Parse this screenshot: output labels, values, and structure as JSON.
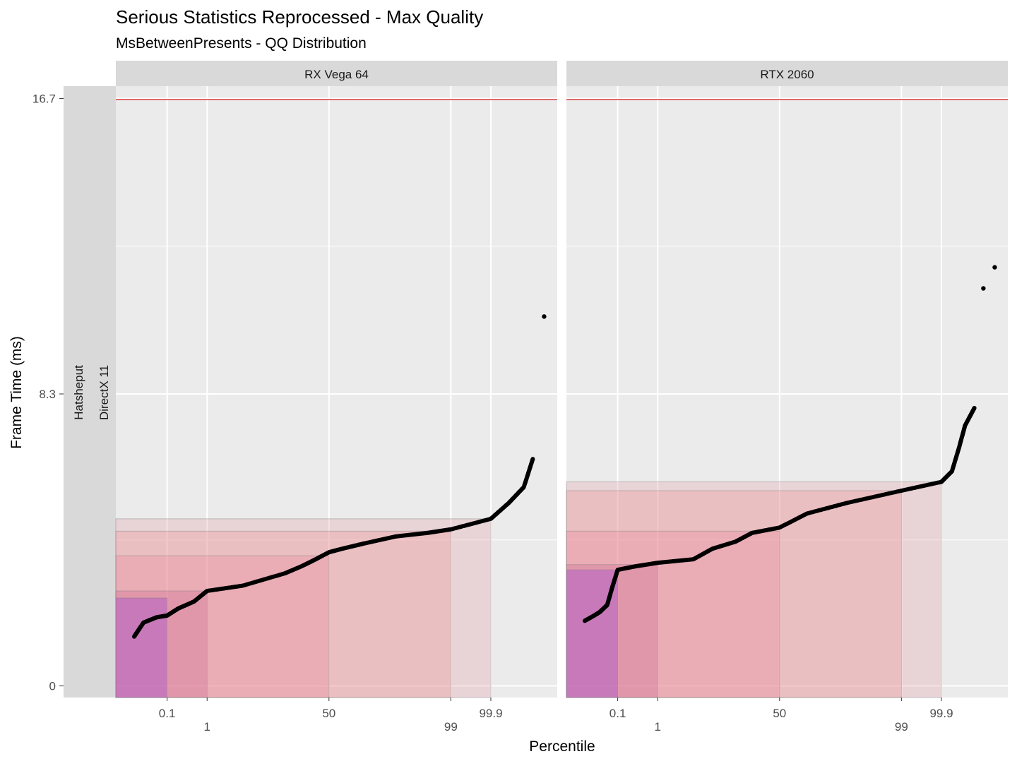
{
  "chart_data": {
    "type": "scatter",
    "title": "Serious Statistics Reprocessed - Max Quality",
    "subtitle": "MsBetweenPresents - QQ Distribution",
    "xlabel": "Percentile",
    "ylabel": "Frame Time (ms)",
    "row_strip": [
      "Hatsheput",
      "DirectX 11"
    ],
    "y_ticks": [
      {
        "value": 0,
        "label": "0"
      },
      {
        "value": 8.3,
        "label": "8.3"
      },
      {
        "value": 16.7,
        "label": "16.7"
      }
    ],
    "ylim": [
      -0.33,
      17.05
    ],
    "x_ticks": [
      {
        "percentile": 0.1,
        "label": "0.1",
        "row": 0
      },
      {
        "percentile": 1,
        "label": "1",
        "row": 1
      },
      {
        "percentile": 50,
        "label": "50",
        "row": 0
      },
      {
        "percentile": 99,
        "label": "99",
        "row": 1
      },
      {
        "percentile": 99.9,
        "label": "99.9",
        "row": 0
      }
    ],
    "reference_line": {
      "value": 16.67,
      "color": "#cc0000"
    },
    "panels": [
      {
        "name": "RX Vega 64",
        "percentile_rects": [
          {
            "percentile": 0.1,
            "value": 2.5,
            "color": "#8a2be2",
            "opacity": 0.28
          },
          {
            "percentile": 1,
            "value": 2.7,
            "color": "#c04080",
            "opacity": 0.2
          },
          {
            "percentile": 50,
            "value": 3.7,
            "color": "#f06080",
            "opacity": 0.18
          },
          {
            "percentile": 99,
            "value": 4.4,
            "color": "#f08080",
            "opacity": 0.25
          },
          {
            "percentile": 99.9,
            "value": 4.75,
            "color": "#e0a0a8",
            "opacity": 0.3
          }
        ],
        "quantile_curve": [
          [
            0.01,
            1.4
          ],
          [
            0.02,
            1.8
          ],
          [
            0.05,
            1.95
          ],
          [
            0.1,
            2.0
          ],
          [
            0.2,
            2.2
          ],
          [
            0.5,
            2.4
          ],
          [
            1,
            2.7
          ],
          [
            5,
            2.85
          ],
          [
            20,
            3.2
          ],
          [
            30,
            3.4
          ],
          [
            40,
            3.6
          ],
          [
            50,
            3.8
          ],
          [
            60,
            3.9
          ],
          [
            75,
            4.05
          ],
          [
            90,
            4.25
          ],
          [
            97,
            4.35
          ],
          [
            99,
            4.45
          ],
          [
            99.9,
            4.75
          ],
          [
            99.97,
            5.2
          ],
          [
            99.99,
            5.65
          ],
          [
            99.995,
            6.45
          ]
        ],
        "outliers": [
          [
            99.998,
            10.5
          ]
        ]
      },
      {
        "name": "RTX 2060",
        "percentile_rects": [
          {
            "percentile": 0.1,
            "value": 3.3,
            "color": "#8a2be2",
            "opacity": 0.28
          },
          {
            "percentile": 1,
            "value": 3.45,
            "color": "#c04080",
            "opacity": 0.2
          },
          {
            "percentile": 50,
            "value": 4.4,
            "color": "#f06080",
            "opacity": 0.18
          },
          {
            "percentile": 99,
            "value": 5.55,
            "color": "#f08080",
            "opacity": 0.25
          },
          {
            "percentile": 99.9,
            "value": 5.8,
            "color": "#e0a0a8",
            "opacity": 0.3
          }
        ],
        "quantile_curve": [
          [
            0.01,
            1.85
          ],
          [
            0.02,
            2.0
          ],
          [
            0.03,
            2.1
          ],
          [
            0.05,
            2.3
          ],
          [
            0.07,
            2.8
          ],
          [
            0.1,
            3.3
          ],
          [
            0.3,
            3.4
          ],
          [
            1,
            3.5
          ],
          [
            5,
            3.6
          ],
          [
            10,
            3.9
          ],
          [
            20,
            4.1
          ],
          [
            30,
            4.35
          ],
          [
            50,
            4.5
          ],
          [
            70,
            4.9
          ],
          [
            90,
            5.2
          ],
          [
            99,
            5.55
          ],
          [
            99.9,
            5.8
          ],
          [
            99.95,
            6.1
          ],
          [
            99.97,
            6.8
          ],
          [
            99.98,
            7.4
          ],
          [
            99.99,
            7.9
          ]
        ],
        "outliers": [
          [
            99.995,
            11.3
          ],
          [
            99.998,
            11.9
          ]
        ]
      }
    ]
  }
}
